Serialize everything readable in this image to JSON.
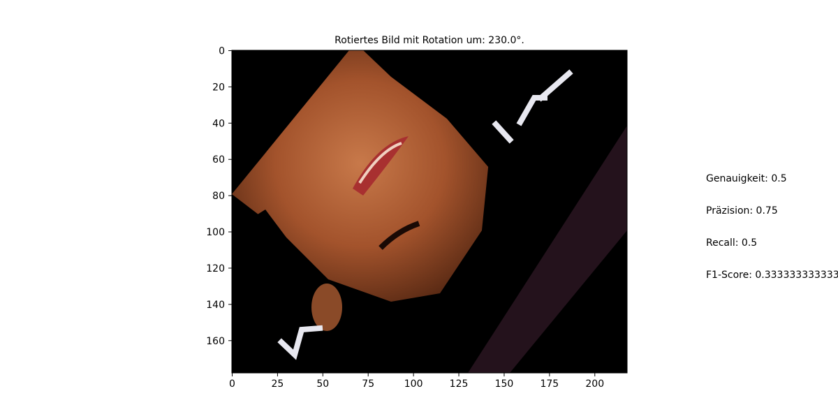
{
  "chart_data": {
    "type": "image",
    "title": "Rotiertes Bild mit Rotation um: 230.0°.",
    "xlim": [
      0,
      218
    ],
    "ylim": [
      0,
      178
    ],
    "x_ticks": [
      0,
      25,
      50,
      75,
      100,
      125,
      150,
      175,
      200
    ],
    "y_ticks": [
      0,
      20,
      40,
      60,
      80,
      100,
      120,
      140,
      160
    ],
    "image_description_colors": {
      "background": "#000000",
      "skin": "#b0613a",
      "dark_skin": "#5a2a14",
      "lips": "#a83030",
      "logo": "#e8e8f0",
      "cloth": "#2a1620"
    }
  },
  "metrics": [
    "Genauigkeit: 0.5",
    "Präzision: 0.75",
    "Recall: 0.5",
    "F1-Score: 0.3333333333333333"
  ]
}
